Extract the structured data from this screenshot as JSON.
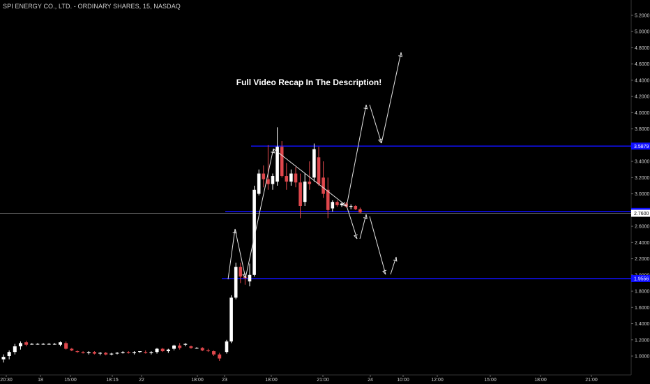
{
  "colors": {
    "up": "#ffffff",
    "down": "#e0474c",
    "level": "#1010ff",
    "price_line": "#ffffff",
    "arrow": "#e6e6e6",
    "background": "#000000"
  },
  "chart_data": {
    "type": "candlestick",
    "symbol_title": "SPI ENERGY CO., LTD. - ORDINARY SHARES, 15, NASDAQ",
    "interval": "15",
    "exchange": "NASDAQ",
    "ylim": [
      0.88,
      5.3
    ],
    "y_ticks": [
      "1.0000",
      "1.2000",
      "1.4000",
      "1.6000",
      "1.8000",
      "2.0000",
      "2.2000",
      "2.4000",
      "2.6000",
      "2.8000",
      "3.0000",
      "3.2000",
      "3.4000",
      "3.6000",
      "3.8000",
      "4.0000",
      "4.2000",
      "4.4000",
      "4.6000",
      "4.8000",
      "5.0000",
      "5.2000"
    ],
    "x_ticks": [
      "20:30",
      "18",
      "15:00",
      "18:15",
      "22",
      "18:00",
      "23",
      "18:00",
      "21:00",
      "24",
      "10:00",
      "12:00",
      "15:00",
      "18:00",
      "21:00"
    ],
    "annotation": "Full Video Recap In The Description!",
    "levels": [
      {
        "label": "3.5879",
        "value": 3.5879
      },
      {
        "label": "2.7829",
        "value": 2.7829
      },
      {
        "label": "1.9556",
        "value": 1.9556
      }
    ],
    "current_price": {
      "label": "2.7600",
      "value": 2.76
    },
    "candles": [
      {
        "o": 0.96,
        "h": 1.02,
        "l": 0.92,
        "c": 0.99
      },
      {
        "o": 1.0,
        "h": 1.07,
        "l": 0.96,
        "c": 1.05
      },
      {
        "o": 1.05,
        "h": 1.15,
        "l": 1.02,
        "c": 1.12
      },
      {
        "o": 1.12,
        "h": 1.18,
        "l": 1.08,
        "c": 1.16
      },
      {
        "o": 1.17,
        "h": 1.19,
        "l": 1.12,
        "c": 1.14
      },
      {
        "o": 1.15,
        "h": 1.16,
        "l": 1.14,
        "c": 1.15
      },
      {
        "o": 1.15,
        "h": 1.16,
        "l": 1.14,
        "c": 1.15
      },
      {
        "o": 1.15,
        "h": 1.16,
        "l": 1.14,
        "c": 1.15
      },
      {
        "o": 1.15,
        "h": 1.16,
        "l": 1.14,
        "c": 1.15
      },
      {
        "o": 1.15,
        "h": 1.16,
        "l": 1.14,
        "c": 1.15
      },
      {
        "o": 1.14,
        "h": 1.18,
        "l": 1.12,
        "c": 1.17
      },
      {
        "o": 1.16,
        "h": 1.18,
        "l": 1.08,
        "c": 1.09
      },
      {
        "o": 1.09,
        "h": 1.1,
        "l": 1.06,
        "c": 1.07
      },
      {
        "o": 1.06,
        "h": 1.07,
        "l": 1.04,
        "c": 1.05
      },
      {
        "o": 1.05,
        "h": 1.06,
        "l": 1.03,
        "c": 1.04
      },
      {
        "o": 1.04,
        "h": 1.06,
        "l": 1.02,
        "c": 1.05
      },
      {
        "o": 1.05,
        "h": 1.06,
        "l": 1.02,
        "c": 1.03
      },
      {
        "o": 1.03,
        "h": 1.05,
        "l": 1.01,
        "c": 1.04
      },
      {
        "o": 1.04,
        "h": 1.05,
        "l": 1.01,
        "c": 1.02
      },
      {
        "o": 1.02,
        "h": 1.04,
        "l": 1.01,
        "c": 1.03
      },
      {
        "o": 1.03,
        "h": 1.05,
        "l": 1.02,
        "c": 1.04
      },
      {
        "o": 1.04,
        "h": 1.06,
        "l": 1.03,
        "c": 1.05
      },
      {
        "o": 1.05,
        "h": 1.06,
        "l": 1.03,
        "c": 1.04
      },
      {
        "o": 1.04,
        "h": 1.06,
        "l": 1.02,
        "c": 1.05
      },
      {
        "o": 1.05,
        "h": 1.06,
        "l": 1.04,
        "c": 1.06
      },
      {
        "o": 1.05,
        "h": 1.07,
        "l": 1.03,
        "c": 1.04
      },
      {
        "o": 1.04,
        "h": 1.06,
        "l": 1.02,
        "c": 1.05
      },
      {
        "o": 1.05,
        "h": 1.1,
        "l": 1.03,
        "c": 1.09
      },
      {
        "o": 1.09,
        "h": 1.1,
        "l": 1.05,
        "c": 1.06
      },
      {
        "o": 1.06,
        "h": 1.09,
        "l": 1.04,
        "c": 1.08
      },
      {
        "o": 1.09,
        "h": 1.14,
        "l": 1.07,
        "c": 1.13
      },
      {
        "o": 1.13,
        "h": 1.16,
        "l": 1.08,
        "c": 1.1
      },
      {
        "o": 1.14,
        "h": 1.16,
        "l": 1.12,
        "c": 1.15
      },
      {
        "o": 1.12,
        "h": 1.13,
        "l": 1.09,
        "c": 1.1
      },
      {
        "o": 1.1,
        "h": 1.11,
        "l": 1.09,
        "c": 1.1
      },
      {
        "o": 1.1,
        "h": 1.11,
        "l": 1.06,
        "c": 1.07
      },
      {
        "o": 1.07,
        "h": 1.09,
        "l": 1.05,
        "c": 1.06
      },
      {
        "o": 1.06,
        "h": 1.07,
        "l": 1.0,
        "c": 1.02
      },
      {
        "o": 1.02,
        "h": 1.04,
        "l": 0.94,
        "c": 0.97
      },
      {
        "o": 1.05,
        "h": 1.2,
        "l": 1.03,
        "c": 1.18
      },
      {
        "o": 1.18,
        "h": 1.75,
        "l": 1.16,
        "c": 1.72
      },
      {
        "o": 1.72,
        "h": 2.15,
        "l": 1.7,
        "c": 2.1
      },
      {
        "o": 2.1,
        "h": 2.15,
        "l": 1.9,
        "c": 1.98
      },
      {
        "o": 1.98,
        "h": 2.0,
        "l": 1.88,
        "c": 1.96
      },
      {
        "o": 1.92,
        "h": 2.14,
        "l": 1.86,
        "c": 2.0
      },
      {
        "o": 2.0,
        "h": 3.1,
        "l": 1.98,
        "c": 3.05
      },
      {
        "o": 3.0,
        "h": 3.3,
        "l": 2.98,
        "c": 3.25
      },
      {
        "o": 3.25,
        "h": 3.35,
        "l": 3.08,
        "c": 3.18
      },
      {
        "o": 3.18,
        "h": 3.6,
        "l": 3.05,
        "c": 3.12
      },
      {
        "o": 3.12,
        "h": 3.25,
        "l": 3.05,
        "c": 3.22
      },
      {
        "o": 3.15,
        "h": 3.82,
        "l": 3.1,
        "c": 3.58
      },
      {
        "o": 3.58,
        "h": 3.65,
        "l": 3.2,
        "c": 3.22
      },
      {
        "o": 3.22,
        "h": 3.38,
        "l": 3.05,
        "c": 3.15
      },
      {
        "o": 3.15,
        "h": 3.3,
        "l": 3.1,
        "c": 3.25
      },
      {
        "o": 3.25,
        "h": 3.33,
        "l": 3.08,
        "c": 3.14
      },
      {
        "o": 3.14,
        "h": 3.25,
        "l": 2.7,
        "c": 2.85
      },
      {
        "o": 2.9,
        "h": 3.25,
        "l": 2.85,
        "c": 3.15
      },
      {
        "o": 3.15,
        "h": 3.4,
        "l": 3.05,
        "c": 3.12
      },
      {
        "o": 3.2,
        "h": 3.62,
        "l": 3.15,
        "c": 3.55
      },
      {
        "o": 3.45,
        "h": 3.58,
        "l": 3.1,
        "c": 3.12
      },
      {
        "o": 3.2,
        "h": 3.4,
        "l": 2.95,
        "c": 3.0
      },
      {
        "o": 3.05,
        "h": 3.2,
        "l": 2.7,
        "c": 2.8
      },
      {
        "o": 2.82,
        "h": 2.92,
        "l": 2.78,
        "c": 2.9
      },
      {
        "o": 2.9,
        "h": 2.92,
        "l": 2.84,
        "c": 2.86
      },
      {
        "o": 2.86,
        "h": 2.89,
        "l": 2.84,
        "c": 2.88
      },
      {
        "o": 2.88,
        "h": 2.9,
        "l": 2.83,
        "c": 2.84
      },
      {
        "o": 2.84,
        "h": 2.87,
        "l": 2.81,
        "c": 2.85
      },
      {
        "o": 2.85,
        "h": 2.86,
        "l": 2.8,
        "c": 2.81
      },
      {
        "o": 2.81,
        "h": 2.83,
        "l": 2.76,
        "c": 2.77
      }
    ]
  }
}
